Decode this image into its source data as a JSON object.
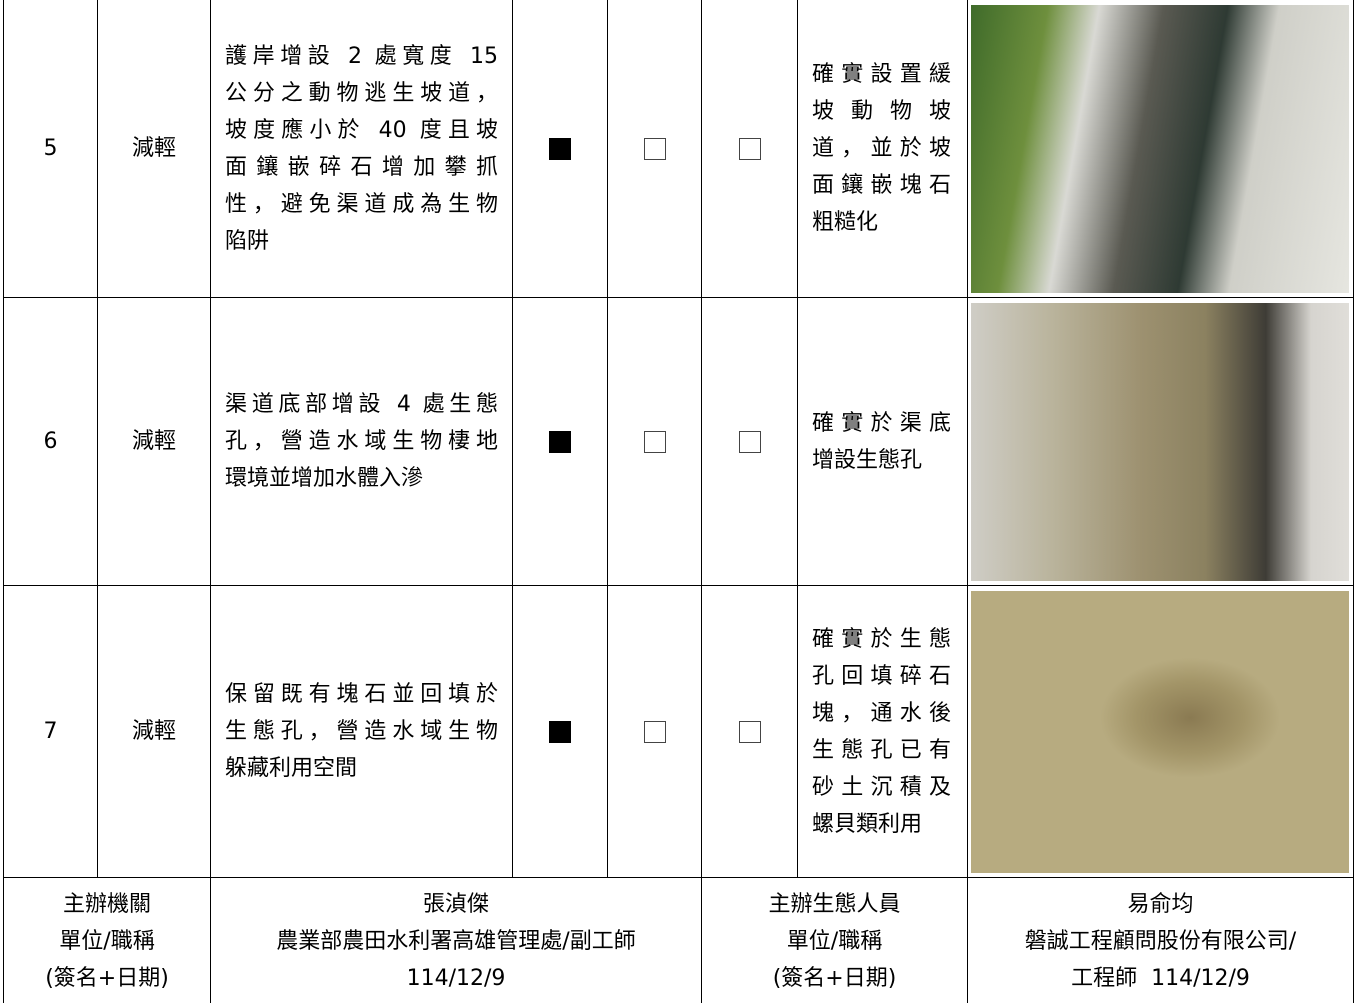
{
  "rows": [
    {
      "no": "5",
      "type": "減輕",
      "measure": [
        "護岸增設 2 處寬度 15",
        "公分之動物逃生坡道，",
        "坡度應小於 40 度且坡",
        "面鑲嵌碎石增加攀抓",
        "性，避免渠道成為生物",
        "陷阱"
      ],
      "checks": [
        true,
        false,
        false
      ],
      "result": [
        "確實設置緩",
        "坡動物坡",
        "道，並於坡",
        "面鑲嵌塊石",
        "粗糙化"
      ]
    },
    {
      "no": "6",
      "type": "減輕",
      "measure": [
        "渠道底部增設 4 處生態",
        "孔，營造水域生物棲地",
        "環境並增加水體入滲"
      ],
      "checks": [
        true,
        false,
        false
      ],
      "result": [
        "確實於渠底",
        "增設生態孔"
      ]
    },
    {
      "no": "7",
      "type": "減輕",
      "measure": [
        "保留既有塊石並回填於",
        "生態孔，營造水域生物",
        "躲藏利用空間"
      ],
      "checks": [
        true,
        false,
        false
      ],
      "result": [
        "確實於生態",
        "孔回填碎石",
        "塊，通水後",
        "生態孔已有",
        "砂土沉積及",
        "螺貝類利用"
      ]
    }
  ],
  "footer": {
    "agency": [
      "主辦機關",
      "單位/職稱",
      "(簽名+日期)"
    ],
    "agency_sign": [
      "張湞傑",
      "農業部農田水利署高雄管理處/副工師",
      "114/12/9"
    ],
    "ecologist": [
      "主辦生態人員",
      "單位/職稱",
      "(簽名+日期)"
    ],
    "ecologist_sign": [
      "易俞均",
      "磐誠工程顧問股份有限公司/",
      "工程師  114/12/9"
    ]
  }
}
